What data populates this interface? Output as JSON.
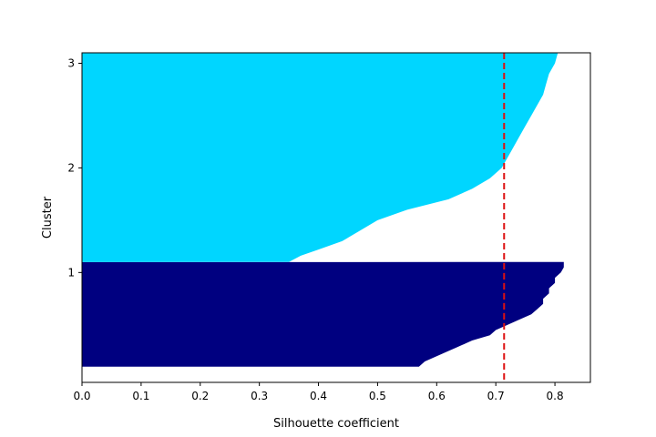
{
  "chart_data": {
    "type": "bar",
    "orientation": "horizontal",
    "title": "",
    "xlabel": "Silhouette coefficient",
    "ylabel": "Cluster",
    "xlim": [
      0.0,
      0.86
    ],
    "ylim": [
      -0.05,
      3.1
    ],
    "grid": false,
    "x_ticks": [
      "0.0",
      "0.1",
      "0.2",
      "0.3",
      "0.4",
      "0.5",
      "0.6",
      "0.7",
      "0.8"
    ],
    "y_ticks": [
      {
        "value": 1,
        "label": "1"
      },
      {
        "value": 2,
        "label": "2"
      },
      {
        "value": 3,
        "label": "3"
      }
    ],
    "average_silhouette": 0.714,
    "average_line_color": "#dd1111",
    "clusters": [
      {
        "label": "1",
        "color": "#000080",
        "range": [
          0.1,
          1.1
        ],
        "silhouette_profile": [
          [
            0.0,
            0.57
          ],
          [
            0.05,
            0.58
          ],
          [
            0.1,
            0.6
          ],
          [
            0.15,
            0.62
          ],
          [
            0.2,
            0.64
          ],
          [
            0.25,
            0.66
          ],
          [
            0.3,
            0.69
          ],
          [
            0.35,
            0.7
          ],
          [
            0.4,
            0.72
          ],
          [
            0.45,
            0.74
          ],
          [
            0.5,
            0.76
          ],
          [
            0.55,
            0.77
          ],
          [
            0.6,
            0.78
          ],
          [
            0.65,
            0.78
          ],
          [
            0.7,
            0.79
          ],
          [
            0.75,
            0.79
          ],
          [
            0.8,
            0.8
          ],
          [
            0.85,
            0.8
          ],
          [
            0.9,
            0.81
          ],
          [
            0.95,
            0.815
          ],
          [
            1.0,
            0.815
          ]
        ]
      },
      {
        "label": "2",
        "color": "#00d6ff",
        "range": [
          1.1,
          3.1
        ],
        "silhouette_profile": [
          [
            0.0,
            0.35
          ],
          [
            0.03,
            0.37
          ],
          [
            0.06,
            0.4
          ],
          [
            0.1,
            0.44
          ],
          [
            0.15,
            0.47
          ],
          [
            0.2,
            0.5
          ],
          [
            0.25,
            0.55
          ],
          [
            0.3,
            0.62
          ],
          [
            0.35,
            0.66
          ],
          [
            0.4,
            0.69
          ],
          [
            0.45,
            0.71
          ],
          [
            0.5,
            0.72
          ],
          [
            0.55,
            0.73
          ],
          [
            0.6,
            0.74
          ],
          [
            0.65,
            0.75
          ],
          [
            0.7,
            0.76
          ],
          [
            0.75,
            0.77
          ],
          [
            0.8,
            0.78
          ],
          [
            0.85,
            0.785
          ],
          [
            0.9,
            0.79
          ],
          [
            0.95,
            0.8
          ],
          [
            1.0,
            0.805
          ]
        ]
      }
    ]
  }
}
